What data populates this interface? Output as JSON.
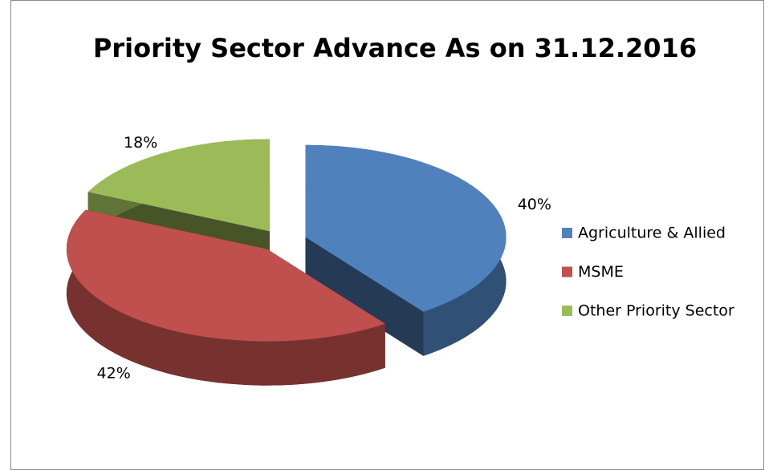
{
  "chart_data": {
    "type": "pie",
    "title": "Priority Sector Advance As on 31.12.2016",
    "categories": [
      "Agriculture & Allied",
      "MSME",
      "Other Priority Sector"
    ],
    "values": [
      40,
      42,
      18
    ],
    "value_labels": [
      "40%",
      "42%",
      "18%"
    ],
    "colors": [
      "#4f81bd",
      "#c0504d",
      "#9bbb59"
    ],
    "legend": "right"
  }
}
